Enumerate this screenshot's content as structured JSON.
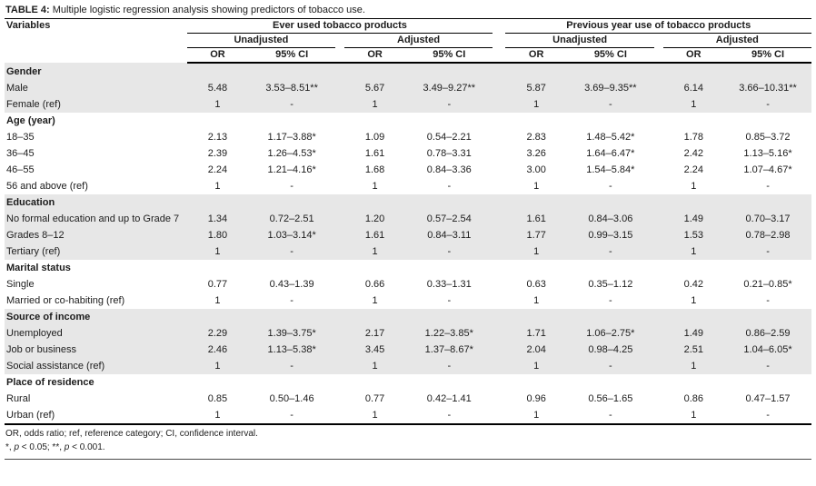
{
  "title": {
    "label": "TABLE 4:",
    "text": "Multiple logistic regression analysis showing predictors of tobacco use."
  },
  "table": {
    "variables_header": "Variables",
    "groups": [
      {
        "label": "Ever used tobacco products"
      },
      {
        "label": "Previous year use of tobacco products"
      }
    ],
    "subgroup_labels": [
      "Unadjusted",
      "Adjusted",
      "Unadjusted",
      "Adjusted"
    ],
    "measure_labels": [
      "OR",
      "95% CI",
      "OR",
      "95% CI",
      "OR",
      "95% CI",
      "OR",
      "95% CI"
    ],
    "sections": [
      {
        "label": "Gender",
        "shaded": true,
        "rows": [
          {
            "label": "Male",
            "values": [
              "5.48",
              "3.53–8.51**",
              "5.67",
              "3.49–9.27**",
              "5.87",
              "3.69–9.35**",
              "6.14",
              "3.66–10.31**"
            ]
          },
          {
            "label": "Female (ref)",
            "values": [
              "1",
              "-",
              "1",
              "-",
              "1",
              "-",
              "1",
              "-"
            ]
          }
        ]
      },
      {
        "label": "Age (year)",
        "shaded": false,
        "rows": [
          {
            "label": "18–35",
            "values": [
              "2.13",
              "1.17–3.88*",
              "1.09",
              "0.54–2.21",
              "2.83",
              "1.48–5.42*",
              "1.78",
              "0.85–3.72"
            ]
          },
          {
            "label": "36–45",
            "values": [
              "2.39",
              "1.26–4.53*",
              "1.61",
              "0.78–3.31",
              "3.26",
              "1.64–6.47*",
              "2.42",
              "1.13–5.16*"
            ]
          },
          {
            "label": "46–55",
            "values": [
              "2.24",
              "1.21–4.16*",
              "1.68",
              "0.84–3.36",
              "3.00",
              "1.54–5.84*",
              "2.24",
              "1.07–4.67*"
            ]
          },
          {
            "label": "56 and above (ref)",
            "values": [
              "1",
              "-",
              "1",
              "-",
              "1",
              "-",
              "1",
              "-"
            ]
          }
        ]
      },
      {
        "label": "Education",
        "shaded": true,
        "rows": [
          {
            "label": "No formal education and up to Grade 7",
            "values": [
              "1.34",
              "0.72–2.51",
              "1.20",
              "0.57–2.54",
              "1.61",
              "0.84–3.06",
              "1.49",
              "0.70–3.17"
            ]
          },
          {
            "label": "Grades 8–12",
            "values": [
              "1.80",
              "1.03–3.14*",
              "1.61",
              "0.84–3.11",
              "1.77",
              "0.99–3.15",
              "1.53",
              "0.78–2.98"
            ]
          },
          {
            "label": "Tertiary (ref)",
            "values": [
              "1",
              "-",
              "1",
              "-",
              "1",
              "-",
              "1",
              "-"
            ]
          }
        ]
      },
      {
        "label": "Marital status",
        "shaded": false,
        "rows": [
          {
            "label": "Single",
            "values": [
              "0.77",
              "0.43–1.39",
              "0.66",
              "0.33–1.31",
              "0.63",
              "0.35–1.12",
              "0.42",
              "0.21–0.85*"
            ]
          },
          {
            "label": "Married or co-habiting (ref)",
            "values": [
              "1",
              "-",
              "1",
              "-",
              "1",
              "-",
              "1",
              "-"
            ]
          }
        ]
      },
      {
        "label": "Source of income",
        "shaded": true,
        "rows": [
          {
            "label": "Unemployed",
            "values": [
              "2.29",
              "1.39–3.75*",
              "2.17",
              "1.22–3.85*",
              "1.71",
              "1.06–2.75*",
              "1.49",
              "0.86–2.59"
            ]
          },
          {
            "label": "Job or business",
            "values": [
              "2.46",
              "1.13–5.38*",
              "3.45",
              "1.37–8.67*",
              "2.04",
              "0.98–4.25",
              "2.51",
              "1.04–6.05*"
            ]
          },
          {
            "label": "Social assistance (ref)",
            "values": [
              "1",
              "-",
              "1",
              "-",
              "1",
              "-",
              "1",
              "-"
            ]
          }
        ]
      },
      {
        "label": "Place of residence",
        "shaded": false,
        "rows": [
          {
            "label": "Rural",
            "values": [
              "0.85",
              "0.50–1.46",
              "0.77",
              "0.42–1.41",
              "0.96",
              "0.56–1.65",
              "0.86",
              "0.47–1.57"
            ]
          },
          {
            "label": "Urban (ref)",
            "values": [
              "1",
              "-",
              "1",
              "-",
              "1",
              "-",
              "1",
              "-"
            ]
          }
        ]
      }
    ]
  },
  "footnotes": {
    "line1": "OR, odds ratio; ref, reference category; CI, confidence interval.",
    "line2_segments": [
      {
        "t": "*, "
      },
      {
        "t": "p",
        "i": true
      },
      {
        "t": " < 0.05; **, "
      },
      {
        "t": "p",
        "i": true
      },
      {
        "t": " < 0.001."
      }
    ]
  },
  "colors": {
    "shaded_row": "#e7e7e7",
    "rule": "#000000",
    "text": "#1c1c1c"
  }
}
